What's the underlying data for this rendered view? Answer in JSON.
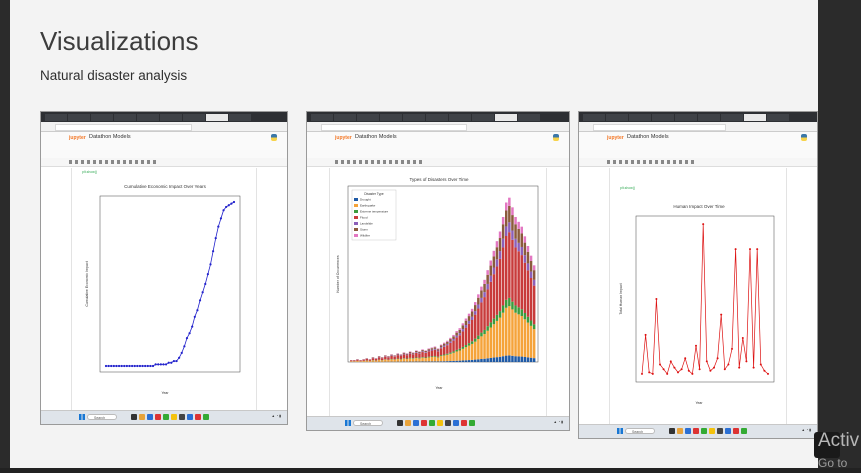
{
  "slide": {
    "title": "Visualizations",
    "subtitle": "Natural disaster analysis"
  },
  "screenshots": [
    {
      "notebook_title": "Datathon Models",
      "search_label": "Search",
      "cell_text": "plt.show()",
      "chart_data": {
        "type": "line",
        "title": "Cumulative Economic Impact Over Years",
        "xlabel": "Year",
        "ylabel": "Cumulative Economic Impact",
        "values": [
          0.0,
          0.0,
          0.0,
          0.0,
          0.0,
          0.0,
          0.0,
          0.0,
          0.0,
          0.0,
          0.0,
          0.0,
          0.0,
          0.0,
          0.0,
          0.0,
          0.0,
          0.0,
          0.0,
          0.01,
          0.01,
          0.01,
          0.01,
          0.01,
          0.02,
          0.02,
          0.03,
          0.03,
          0.05,
          0.08,
          0.12,
          0.17,
          0.2,
          0.24,
          0.3,
          0.34,
          0.4,
          0.45,
          0.5,
          0.56,
          0.62,
          0.7,
          0.78,
          0.85,
          0.9,
          0.95,
          0.97,
          0.98,
          0.99,
          1.0
        ]
      }
    },
    {
      "notebook_title": "Datathon Models",
      "search_label": "Search",
      "chart_data": {
        "type": "bar",
        "title": "Types of Disasters Over Time",
        "xlabel": "Year",
        "ylabel": "Number of Occurrences",
        "legend_title": "Disaster Type",
        "series": [
          {
            "name": "Drought",
            "color": "#1f5aa6"
          },
          {
            "name": "Earthquake",
            "color": "#f5a33a"
          },
          {
            "name": "Extreme temperature",
            "color": "#3c9b3c"
          },
          {
            "name": "Flood",
            "color": "#c83b3b"
          },
          {
            "name": "Landslide",
            "color": "#8c5fb8"
          },
          {
            "name": "Storm",
            "color": "#8b5a3c"
          },
          {
            "name": "Wildfire",
            "color": "#e377c2"
          }
        ],
        "totals": [
          2,
          2,
          3,
          2,
          3,
          4,
          3,
          5,
          4,
          6,
          5,
          7,
          6,
          8,
          7,
          9,
          8,
          10,
          9,
          11,
          10,
          12,
          11,
          13,
          12,
          14,
          15,
          16,
          14,
          18,
          20,
          22,
          25,
          28,
          32,
          35,
          40,
          45,
          50,
          55,
          62,
          70,
          78,
          85,
          95,
          105,
          115,
          125,
          135,
          150,
          165,
          170,
          160,
          150,
          145,
          140,
          130,
          120,
          110,
          100
        ]
      }
    },
    {
      "notebook_title": "Datathon Models",
      "search_label": "Search",
      "cell_text": "plt.show()",
      "chart_data": {
        "type": "line",
        "title": "Human Impact Over Time",
        "xlabel": "Year",
        "ylabel": "Total Human Impact",
        "values": [
          0.02,
          0.27,
          0.03,
          0.02,
          0.5,
          0.08,
          0.05,
          0.02,
          0.1,
          0.06,
          0.03,
          0.05,
          0.12,
          0.04,
          0.02,
          0.2,
          0.05,
          0.98,
          0.1,
          0.04,
          0.06,
          0.12,
          0.4,
          0.05,
          0.08,
          0.18,
          0.82,
          0.06,
          0.25,
          0.1,
          0.82,
          0.06,
          0.82,
          0.08,
          0.04,
          0.02
        ]
      }
    }
  ],
  "watermark": {
    "line1": "Activ",
    "line2": "Go to"
  }
}
